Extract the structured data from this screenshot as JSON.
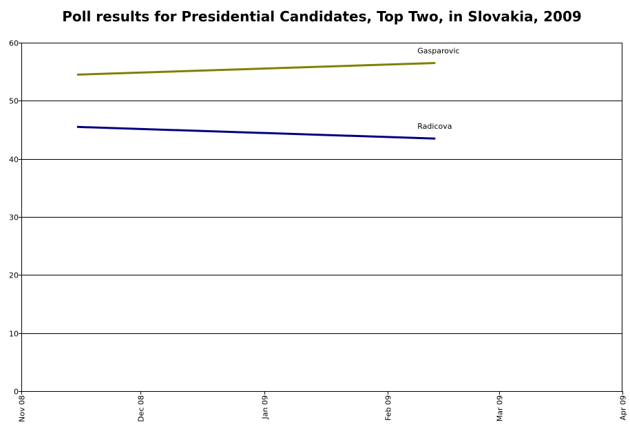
{
  "chart_data": {
    "type": "line",
    "title": "Poll results for Presidential Candidates, Top Two, in Slovakia, 2009",
    "xlabel": "",
    "ylabel": "",
    "ylim": [
      0,
      60
    ],
    "yticks": [
      0,
      10,
      20,
      30,
      40,
      50,
      60
    ],
    "xlim": [
      "2008-11-01",
      "2009-04-01"
    ],
    "xticks": [
      {
        "date": "2008-11-01",
        "label": "Nov 08"
      },
      {
        "date": "2008-12-01",
        "label": "Dec 08"
      },
      {
        "date": "2009-01-01",
        "label": "Jan 09"
      },
      {
        "date": "2009-02-01",
        "label": "Feb 09"
      },
      {
        "date": "2009-03-01",
        "label": "Mar 09"
      },
      {
        "date": "2009-04-01",
        "label": "Apr 09"
      }
    ],
    "grid": "horizontal",
    "series": [
      {
        "name": "Gasparovic",
        "color": "#808000",
        "x": [
          "2008-11-15",
          "2009-02-13"
        ],
        "values": [
          54.5,
          56.5
        ]
      },
      {
        "name": "Radicova",
        "color": "#000080",
        "x": [
          "2008-11-15",
          "2009-02-13"
        ],
        "values": [
          45.5,
          43.5
        ]
      }
    ]
  }
}
